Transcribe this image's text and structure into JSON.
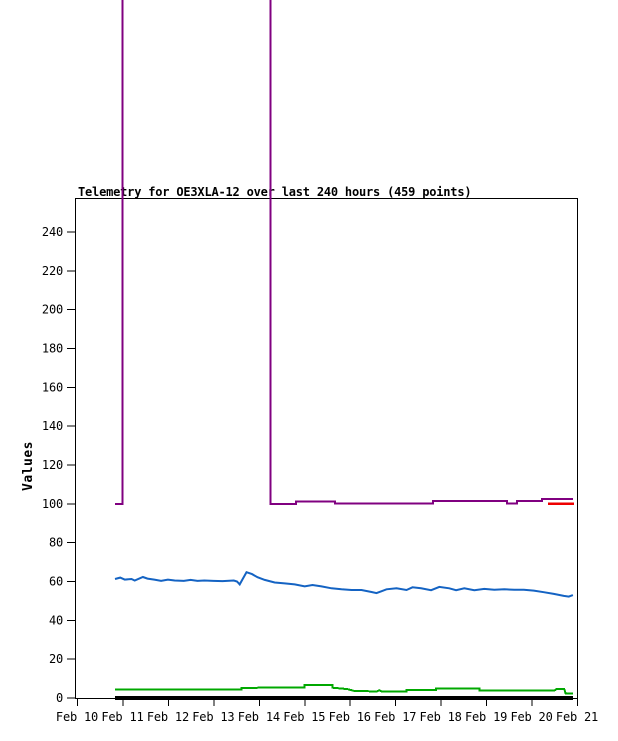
{
  "chart_data": {
    "type": "line",
    "title": "Telemetry for OE3XLA-12 over last 240 hours (459 points)",
    "xlabel": "",
    "ylabel": "Values",
    "x_tick_labels": [
      "Feb 10",
      "Feb 11",
      "Feb 12",
      "Feb 13",
      "Feb 14",
      "Feb 15",
      "Feb 16",
      "Feb 17",
      "Feb 18",
      "Feb 19",
      "Feb 20",
      "Feb 21"
    ],
    "y_ticks": [
      0,
      20,
      40,
      60,
      80,
      100,
      120,
      140,
      160,
      180,
      200,
      220,
      240
    ],
    "ylim": [
      0,
      257
    ],
    "x_unit": "days since Feb 10",
    "grid": false,
    "legend": "none",
    "notes": "Purple series spikes off-scale between day 1.0 (Feb 11) and day 4.26 (~Feb 14); the vertical edges are clipped at the top of the image. Off-scale spike encoded with value 400. Data span is ~day 0.84 to ~day 10.91 (240 hours).",
    "series": [
      {
        "name": "black-baseline",
        "color": "#000000",
        "width": 4,
        "step": true,
        "points": [
          [
            0.84,
            0
          ],
          [
            10.91,
            0
          ]
        ]
      },
      {
        "name": "blue",
        "color": "#1463C3",
        "width": 2,
        "step": false,
        "points": [
          [
            0.836,
            61.3
          ],
          [
            0.95,
            62
          ],
          [
            1.05,
            61
          ],
          [
            1.2,
            61.3
          ],
          [
            1.27,
            60.5
          ],
          [
            1.45,
            62.3
          ],
          [
            1.55,
            61.5
          ],
          [
            1.7,
            61
          ],
          [
            1.85,
            60.3
          ],
          [
            2.0,
            61
          ],
          [
            2.15,
            60.5
          ],
          [
            2.35,
            60.3
          ],
          [
            2.5,
            60.8
          ],
          [
            2.65,
            60.3
          ],
          [
            2.8,
            60.5
          ],
          [
            3.0,
            60.3
          ],
          [
            3.2,
            60.2
          ],
          [
            3.45,
            60.5
          ],
          [
            3.52,
            60
          ],
          [
            3.58,
            58.5
          ],
          [
            3.65,
            61.5
          ],
          [
            3.73,
            64.8
          ],
          [
            3.85,
            63.8
          ],
          [
            3.97,
            62.2
          ],
          [
            4.13,
            60.8
          ],
          [
            4.35,
            59.5
          ],
          [
            4.57,
            59
          ],
          [
            4.79,
            58.5
          ],
          [
            5.01,
            57.5
          ],
          [
            5.18,
            58.2
          ],
          [
            5.38,
            57.5
          ],
          [
            5.6,
            56.5
          ],
          [
            5.82,
            56
          ],
          [
            6.04,
            55.6
          ],
          [
            6.26,
            55.6
          ],
          [
            6.48,
            54.6
          ],
          [
            6.59,
            54
          ],
          [
            6.81,
            56
          ],
          [
            7.03,
            56.5
          ],
          [
            7.25,
            55.6
          ],
          [
            7.38,
            57
          ],
          [
            7.57,
            56.5
          ],
          [
            7.79,
            55.5
          ],
          [
            7.97,
            57.2
          ],
          [
            8.19,
            56.5
          ],
          [
            8.34,
            55.5
          ],
          [
            8.52,
            56.5
          ],
          [
            8.74,
            55.5
          ],
          [
            8.96,
            56.2
          ],
          [
            9.18,
            55.8
          ],
          [
            9.4,
            56
          ],
          [
            9.62,
            55.7
          ],
          [
            9.83,
            55.8
          ],
          [
            10.05,
            55.3
          ],
          [
            10.27,
            54.5
          ],
          [
            10.49,
            53.6
          ],
          [
            10.71,
            52.6
          ],
          [
            10.82,
            52.2
          ],
          [
            10.91,
            53
          ]
        ]
      },
      {
        "name": "green",
        "color": "#00A800",
        "width": 2,
        "step": true,
        "points": [
          [
            0.836,
            4.3
          ],
          [
            3.62,
            4.3
          ],
          [
            3.62,
            5.2
          ],
          [
            4.6,
            5.4
          ],
          [
            5.0,
            5.4
          ],
          [
            5.0,
            6.6
          ],
          [
            5.62,
            6.6
          ],
          [
            5.62,
            5.3
          ],
          [
            5.95,
            4.6
          ],
          [
            6.1,
            3.6
          ],
          [
            6.6,
            3.4
          ],
          [
            6.65,
            4.0
          ],
          [
            6.7,
            3.4
          ],
          [
            7.25,
            3.4
          ],
          [
            7.25,
            4.1
          ],
          [
            7.9,
            4.1
          ],
          [
            7.9,
            5.0
          ],
          [
            8.85,
            5.0
          ],
          [
            8.85,
            3.8
          ],
          [
            10.5,
            3.8
          ],
          [
            10.55,
            4.6
          ],
          [
            10.72,
            4.6
          ],
          [
            10.75,
            2.4
          ],
          [
            10.91,
            2.4
          ]
        ]
      },
      {
        "name": "purple",
        "color": "#800080",
        "width": 2,
        "step": true,
        "points": [
          [
            0.836,
            100
          ],
          [
            1.0,
            100
          ],
          [
            1.0,
            400
          ],
          [
            4.26,
            400
          ],
          [
            4.26,
            100
          ],
          [
            4.82,
            100
          ],
          [
            4.82,
            101.3
          ],
          [
            5.68,
            101.3
          ],
          [
            5.68,
            100.3
          ],
          [
            7.83,
            100.3
          ],
          [
            7.83,
            101.5
          ],
          [
            9.46,
            101.5
          ],
          [
            9.46,
            100.3
          ],
          [
            9.68,
            100.3
          ],
          [
            9.68,
            101.5
          ],
          [
            10.23,
            101.5
          ],
          [
            10.23,
            102.5
          ],
          [
            10.91,
            102.5
          ]
        ]
      },
      {
        "name": "red",
        "color": "#EE0000",
        "width": 2.5,
        "step": true,
        "points": [
          [
            10.36,
            100
          ],
          [
            10.93,
            100
          ]
        ]
      }
    ]
  }
}
